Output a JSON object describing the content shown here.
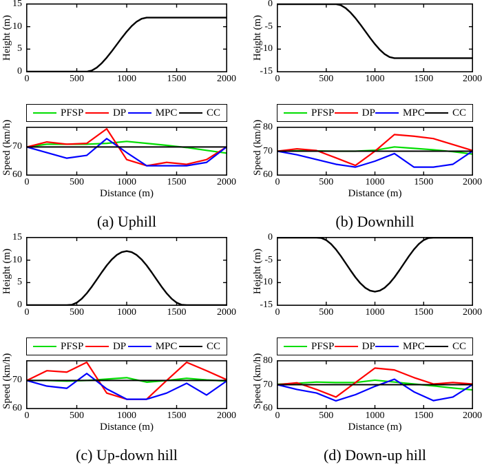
{
  "captions": [
    "(a) Uphill",
    "(b) Downhill",
    "(c) Up-down hill",
    "(d) Down-up hill"
  ],
  "legend_labels": [
    "PFSP",
    "DP",
    "MPC",
    "CC"
  ],
  "colors": {
    "pfsp": "#00dd00",
    "dp": "#ff0000",
    "mpc": "#0000ff",
    "cc": "#000000",
    "road": "#000000"
  },
  "chart_data": [
    {
      "id": "a_height",
      "type": "line",
      "title": "",
      "xlabel": "",
      "ylabel": "Height (m)",
      "xlim": [
        0,
        2000
      ],
      "ylim": [
        0,
        15
      ],
      "xticks": [
        0,
        500,
        1000,
        1500,
        2000
      ],
      "yticks": [
        0,
        5,
        10,
        15
      ],
      "x": [
        0,
        600,
        650,
        700,
        750,
        800,
        850,
        900,
        950,
        1000,
        1050,
        1100,
        1150,
        1200,
        2000
      ],
      "series": [
        {
          "name": "road profile",
          "color": "#000000",
          "width": 2.4,
          "y": [
            0,
            0,
            0.24,
            0.89,
            1.88,
            3.11,
            4.51,
            6,
            7.49,
            8.89,
            10.13,
            11.11,
            11.76,
            12,
            12
          ]
        }
      ],
      "legend": null
    },
    {
      "id": "a_speed",
      "type": "line",
      "title": "",
      "xlabel": "Distance (m)",
      "ylabel": "Speed (km/h)",
      "xlim": [
        0,
        2000
      ],
      "ylim": [
        60,
        77
      ],
      "xticks": [
        0,
        500,
        1000,
        1500,
        2000
      ],
      "yticks": [
        60,
        70
      ],
      "x": [
        0,
        200,
        400,
        600,
        800,
        1000,
        1200,
        1400,
        1600,
        1800,
        2000
      ],
      "series": [
        {
          "name": "PFSP",
          "color": "#00dd00",
          "width": 2.2,
          "y": [
            70,
            71,
            71,
            71,
            71.3,
            72,
            71.3,
            70.6,
            69.8,
            68.8,
            67.8
          ]
        },
        {
          "name": "DP",
          "color": "#ff0000",
          "width": 2.2,
          "y": [
            70,
            71.8,
            71,
            71.3,
            76.5,
            65.5,
            63.3,
            64.5,
            63.8,
            65.5,
            70
          ]
        },
        {
          "name": "MPC",
          "color": "#0000ff",
          "width": 2.2,
          "y": [
            70,
            68,
            66,
            67,
            73,
            68,
            63.3,
            63.3,
            63.3,
            64.5,
            70
          ]
        },
        {
          "name": "CC",
          "color": "#000000",
          "width": 2,
          "y": [
            70,
            70,
            70,
            70,
            70,
            70,
            70,
            70,
            70,
            70,
            70
          ]
        }
      ],
      "legend": {
        "position": "above",
        "entries": [
          "PFSP",
          "DP",
          "MPC",
          "CC"
        ]
      }
    },
    {
      "id": "b_height",
      "type": "line",
      "title": "",
      "xlabel": "",
      "ylabel": "Height (m)",
      "xlim": [
        0,
        2000
      ],
      "ylim": [
        -15,
        0
      ],
      "xticks": [
        0,
        500,
        1000,
        1500,
        2000
      ],
      "yticks": [
        -15,
        -10,
        -5,
        0
      ],
      "x": [
        0,
        600,
        650,
        700,
        750,
        800,
        850,
        900,
        950,
        1000,
        1050,
        1100,
        1150,
        1200,
        2000
      ],
      "series": [
        {
          "name": "road profile",
          "color": "#000000",
          "width": 2.4,
          "y": [
            0,
            0,
            -0.24,
            -0.89,
            -1.88,
            -3.11,
            -4.51,
            -6,
            -7.49,
            -8.89,
            -10.13,
            -11.11,
            -11.76,
            -12,
            -12
          ]
        }
      ],
      "legend": null
    },
    {
      "id": "b_speed",
      "type": "line",
      "title": "",
      "xlabel": "Distance (m)",
      "ylabel": "Speed (km/h)",
      "xlim": [
        0,
        2000
      ],
      "ylim": [
        60,
        80
      ],
      "xticks": [
        0,
        500,
        1000,
        1500,
        2000
      ],
      "yticks": [
        60,
        70,
        80
      ],
      "x": [
        0,
        200,
        400,
        600,
        800,
        1000,
        1200,
        1400,
        1600,
        1800,
        2000
      ],
      "series": [
        {
          "name": "PFSP",
          "color": "#00dd00",
          "width": 2.2,
          "y": [
            70,
            70.2,
            70.1,
            70,
            70,
            70.4,
            71.8,
            71.2,
            70.6,
            69.8,
            68.8
          ]
        },
        {
          "name": "DP",
          "color": "#ff0000",
          "width": 2.2,
          "y": [
            70,
            71,
            70.3,
            67.2,
            64,
            70,
            77,
            76.3,
            75.3,
            72.8,
            70.3
          ]
        },
        {
          "name": "MPC",
          "color": "#0000ff",
          "width": 2.2,
          "y": [
            70,
            68.5,
            66.5,
            64.5,
            63.3,
            65.8,
            69,
            63.3,
            63.3,
            64.5,
            70
          ]
        },
        {
          "name": "CC",
          "color": "#000000",
          "width": 2,
          "y": [
            70,
            70,
            70,
            70,
            70,
            70,
            70,
            70,
            70,
            70,
            70
          ]
        }
      ],
      "legend": {
        "position": "above",
        "entries": [
          "PFSP",
          "DP",
          "MPC",
          "CC"
        ]
      }
    },
    {
      "id": "c_height",
      "type": "line",
      "title": "",
      "xlabel": "",
      "ylabel": "Height (m)",
      "xlim": [
        0,
        2000
      ],
      "ylim": [
        0,
        15
      ],
      "xticks": [
        0,
        500,
        1000,
        1500,
        2000
      ],
      "yticks": [
        0,
        5,
        10,
        15
      ],
      "x": [
        0,
        400,
        450,
        500,
        550,
        600,
        650,
        700,
        750,
        800,
        850,
        900,
        950,
        1000,
        1050,
        1100,
        1150,
        1200,
        1250,
        1300,
        1350,
        1400,
        1450,
        1500,
        1550,
        1600,
        2000
      ],
      "series": [
        {
          "name": "road profile",
          "color": "#000000",
          "width": 2.4,
          "y": [
            0,
            0,
            0.08,
            0.55,
            1.43,
            2.63,
            4.08,
            5.68,
            7.29,
            8.82,
            10.13,
            11.14,
            11.78,
            12,
            11.78,
            11.14,
            10.13,
            8.82,
            7.29,
            5.68,
            4.08,
            2.63,
            1.43,
            0.55,
            0.08,
            0,
            0
          ]
        }
      ],
      "legend": null
    },
    {
      "id": "c_speed",
      "type": "line",
      "title": "",
      "xlabel": "Distance (m)",
      "ylabel": "Speed (km/h)",
      "xlim": [
        0,
        2000
      ],
      "ylim": [
        60,
        77
      ],
      "xticks": [
        0,
        500,
        1000,
        1500,
        2000
      ],
      "yticks": [
        60,
        70
      ],
      "x": [
        0,
        200,
        400,
        600,
        800,
        1000,
        1200,
        1400,
        1600,
        1800,
        2000
      ],
      "series": [
        {
          "name": "PFSP",
          "color": "#00dd00",
          "width": 2.2,
          "y": [
            70,
            70,
            69.8,
            70,
            70.5,
            71,
            69.4,
            70,
            70.8,
            70.2,
            69.8
          ]
        },
        {
          "name": "DP",
          "color": "#ff0000",
          "width": 2.2,
          "y": [
            70,
            73.5,
            73,
            76.5,
            65.5,
            63.3,
            63.3,
            70,
            76.5,
            73.5,
            70.3
          ]
        },
        {
          "name": "MPC",
          "color": "#0000ff",
          "width": 2.2,
          "y": [
            70,
            68,
            67.2,
            72.5,
            67,
            63.3,
            63.3,
            65.5,
            69,
            64.8,
            69.8
          ]
        },
        {
          "name": "CC",
          "color": "#000000",
          "width": 2,
          "y": [
            70,
            70,
            70,
            70,
            70,
            70,
            70,
            70,
            70,
            70,
            70
          ]
        }
      ],
      "legend": {
        "position": "above",
        "entries": [
          "PFSP",
          "DP",
          "MPC",
          "CC"
        ]
      }
    },
    {
      "id": "d_height",
      "type": "line",
      "title": "",
      "xlabel": "",
      "ylabel": "Height (m)",
      "xlim": [
        0,
        2000
      ],
      "ylim": [
        -15,
        0
      ],
      "xticks": [
        0,
        500,
        1000,
        1500,
        2000
      ],
      "yticks": [
        -15,
        -10,
        -5,
        0
      ],
      "x": [
        0,
        400,
        450,
        500,
        550,
        600,
        650,
        700,
        750,
        800,
        850,
        900,
        950,
        1000,
        1050,
        1100,
        1150,
        1200,
        1250,
        1300,
        1350,
        1400,
        1450,
        1500,
        1550,
        1600,
        2000
      ],
      "series": [
        {
          "name": "road profile",
          "color": "#000000",
          "width": 2.4,
          "y": [
            0,
            0,
            -0.08,
            -0.55,
            -1.43,
            -2.63,
            -4.08,
            -5.68,
            -7.29,
            -8.82,
            -10.13,
            -11.14,
            -11.78,
            -12,
            -11.78,
            -11.14,
            -10.13,
            -8.82,
            -7.29,
            -5.68,
            -4.08,
            -2.63,
            -1.43,
            -0.55,
            -0.08,
            0,
            0
          ]
        }
      ],
      "legend": null
    },
    {
      "id": "d_speed",
      "type": "line",
      "title": "",
      "xlabel": "Distance (m)",
      "ylabel": "Speed (km/h)",
      "xlim": [
        0,
        2000
      ],
      "ylim": [
        60,
        80
      ],
      "xticks": [
        0,
        500,
        1000,
        1500,
        2000
      ],
      "yticks": [
        60,
        70,
        80
      ],
      "x": [
        0,
        200,
        400,
        600,
        800,
        1000,
        1200,
        1400,
        1600,
        1800,
        2000
      ],
      "series": [
        {
          "name": "PFSP",
          "color": "#00dd00",
          "width": 2.2,
          "y": [
            70.2,
            70.6,
            71.1,
            70.9,
            70.9,
            71.9,
            71.1,
            70.3,
            69.5,
            68.6,
            67.8
          ]
        },
        {
          "name": "DP",
          "color": "#ff0000",
          "width": 2.2,
          "y": [
            70,
            70.8,
            68,
            64.8,
            70.9,
            77,
            76.2,
            73,
            70.3,
            70.9,
            70.3
          ]
        },
        {
          "name": "MPC",
          "color": "#0000ff",
          "width": 2.2,
          "y": [
            70,
            68,
            66.5,
            63.2,
            65.8,
            69.3,
            72.3,
            67,
            63.3,
            64.8,
            70
          ]
        },
        {
          "name": "CC",
          "color": "#000000",
          "width": 2,
          "y": [
            70,
            70,
            70,
            70,
            70,
            70,
            70,
            70,
            70,
            70,
            70
          ]
        }
      ],
      "legend": {
        "position": "above",
        "entries": [
          "PFSP",
          "DP",
          "MPC",
          "CC"
        ]
      }
    }
  ]
}
